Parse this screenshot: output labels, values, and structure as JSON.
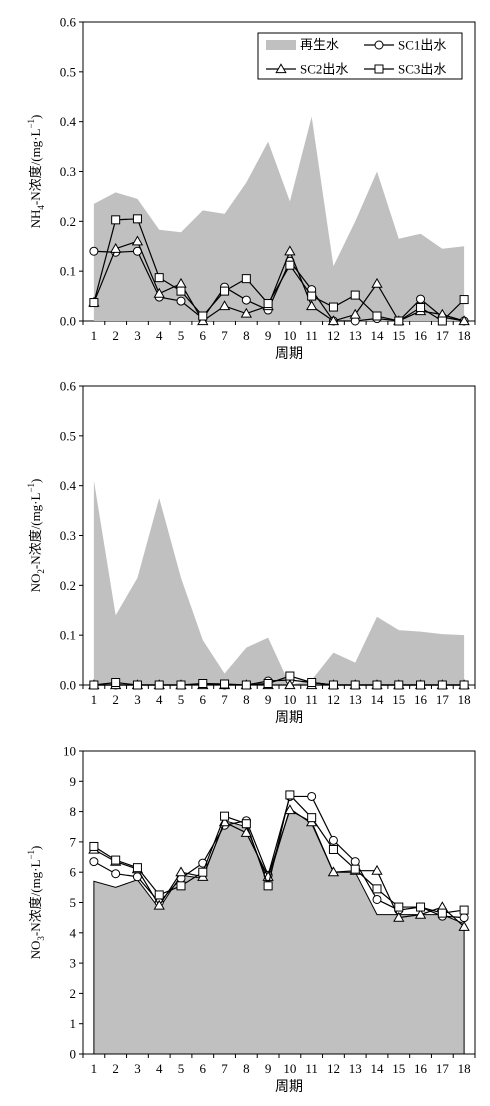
{
  "figure": {
    "colors": {
      "area": "#c0c0c0",
      "line": "#000000",
      "marker_fill": "#ffffff",
      "axis": "#000000"
    }
  },
  "legend": {
    "area_label": "再生水",
    "sc1_label": "SC1出水",
    "sc2_label": "SC2出水",
    "sc3_label": "SC3出水"
  },
  "chart_data": [
    {
      "type": "area",
      "ylabel": "NH4-N浓度/(mg·L−1)",
      "ylabel_parts": [
        "NH",
        "4",
        "-N浓度/(mg·L",
        "−1",
        ")"
      ],
      "xlabel": "周期",
      "categories": [
        "1",
        "2",
        "3",
        "4",
        "5",
        "6",
        "7",
        "8",
        "9",
        "10",
        "11",
        "12",
        "13",
        "14",
        "15",
        "16",
        "17",
        "18"
      ],
      "ylim": [
        0,
        0.6
      ],
      "yticks": [
        "0.0",
        "0.1",
        "0.2",
        "0.3",
        "0.4",
        "0.5",
        "0.6"
      ],
      "legend_placement": "top-right",
      "grid": false,
      "area": {
        "name": "再生水",
        "values": [
          0.235,
          0.258,
          0.245,
          0.183,
          0.178,
          0.222,
          0.215,
          0.278,
          0.36,
          0.24,
          0.41,
          0.11,
          0.2,
          0.3,
          0.165,
          0.175,
          0.145,
          0.15
        ]
      },
      "series": [
        {
          "name": "SC1出水",
          "marker": "circle",
          "values": [
            0.14,
            0.138,
            0.14,
            0.048,
            0.04,
            0.005,
            0.068,
            0.042,
            0.022,
            0.12,
            0.063,
            0.0,
            0.0,
            0.005,
            0.0,
            0.044,
            0.008,
            0.0
          ]
        },
        {
          "name": "SC2出水",
          "marker": "triangle",
          "values": [
            0.037,
            0.145,
            0.16,
            0.055,
            0.075,
            0.0,
            0.03,
            0.015,
            0.03,
            0.14,
            0.03,
            0.0,
            0.013,
            0.075,
            0.0,
            0.02,
            0.013,
            0.0
          ]
        },
        {
          "name": "SC3出水",
          "marker": "square",
          "values": [
            0.037,
            0.203,
            0.205,
            0.087,
            0.06,
            0.01,
            0.06,
            0.085,
            0.035,
            0.112,
            0.05,
            0.028,
            0.052,
            0.01,
            0.0,
            0.027,
            0.0,
            0.043
          ]
        }
      ]
    },
    {
      "type": "area",
      "ylabel": "NO2-N浓度/(mg·L−1)",
      "ylabel_parts": [
        "NO",
        "2",
        "-N浓度/(mg·L",
        "−1",
        ")"
      ],
      "xlabel": "周期",
      "categories": [
        "1",
        "2",
        "3",
        "4",
        "5",
        "6",
        "7",
        "8",
        "9",
        "10",
        "11",
        "12",
        "13",
        "14",
        "15",
        "16",
        "17",
        "18"
      ],
      "ylim": [
        0,
        0.6
      ],
      "yticks": [
        "0.0",
        "0.1",
        "0.2",
        "0.3",
        "0.4",
        "0.5",
        "0.6"
      ],
      "grid": false,
      "area": {
        "name": "再生水",
        "values": [
          0.41,
          0.14,
          0.215,
          0.375,
          0.215,
          0.09,
          0.023,
          0.075,
          0.095,
          0.0,
          0.01,
          0.065,
          0.045,
          0.137,
          0.11,
          0.107,
          0.102,
          0.1
        ]
      },
      "series": [
        {
          "name": "SC1出水",
          "marker": "circle",
          "values": [
            0,
            0,
            0,
            0,
            0,
            0.002,
            0,
            0,
            0.008,
            0.01,
            0.005,
            0,
            0,
            0,
            0,
            0,
            0,
            0
          ]
        },
        {
          "name": "SC2出水",
          "marker": "triangle",
          "values": [
            0,
            0,
            0,
            0,
            0,
            0,
            0,
            0,
            0,
            0,
            0,
            0,
            0,
            0,
            0,
            0,
            0,
            0
          ]
        },
        {
          "name": "SC3出水",
          "marker": "square",
          "values": [
            0,
            0.005,
            0,
            0,
            0,
            0.003,
            0.002,
            0,
            0.003,
            0.018,
            0.005,
            0,
            0,
            0,
            0,
            0,
            0,
            0
          ]
        }
      ]
    },
    {
      "type": "area",
      "ylabel": "NO3-N浓度/(mg·L−1)",
      "ylabel_parts": [
        "NO",
        "3",
        "-N浓度/(mg·L",
        "−1",
        ")"
      ],
      "xlabel": "周期",
      "categories": [
        "1",
        "2",
        "3",
        "4",
        "5",
        "6",
        "7",
        "8",
        "9",
        "10",
        "11",
        "12",
        "13",
        "14",
        "15",
        "16",
        "17",
        "18"
      ],
      "ylim": [
        0,
        10
      ],
      "yticks": [
        "0",
        "1",
        "2",
        "3",
        "4",
        "5",
        "6",
        "7",
        "8",
        "9",
        "10"
      ],
      "grid": false,
      "area": {
        "name": "再生水",
        "values": [
          5.7,
          5.5,
          5.75,
          4.8,
          5.9,
          5.8,
          7.7,
          7.5,
          5.7,
          8.1,
          7.6,
          6.0,
          6.0,
          4.6,
          4.6,
          4.6,
          4.6,
          4.3
        ]
      },
      "series": [
        {
          "name": "SC1出水",
          "marker": "circle",
          "values": [
            6.35,
            5.95,
            5.85,
            5.0,
            5.8,
            6.3,
            7.55,
            7.7,
            5.9,
            8.5,
            8.5,
            7.05,
            6.35,
            5.1,
            4.75,
            4.85,
            4.55,
            4.5
          ]
        },
        {
          "name": "SC2出水",
          "marker": "triangle",
          "values": [
            6.75,
            6.35,
            6.1,
            4.9,
            6.0,
            5.85,
            7.65,
            7.3,
            5.85,
            8.05,
            7.65,
            6.0,
            6.05,
            6.05,
            4.5,
            4.6,
            4.85,
            4.2
          ]
        },
        {
          "name": "SC3出水",
          "marker": "square",
          "values": [
            6.85,
            6.4,
            6.15,
            5.25,
            5.55,
            6.0,
            7.85,
            7.6,
            5.55,
            8.55,
            7.8,
            6.75,
            6.1,
            5.45,
            4.85,
            4.85,
            4.65,
            4.75
          ]
        }
      ]
    }
  ]
}
